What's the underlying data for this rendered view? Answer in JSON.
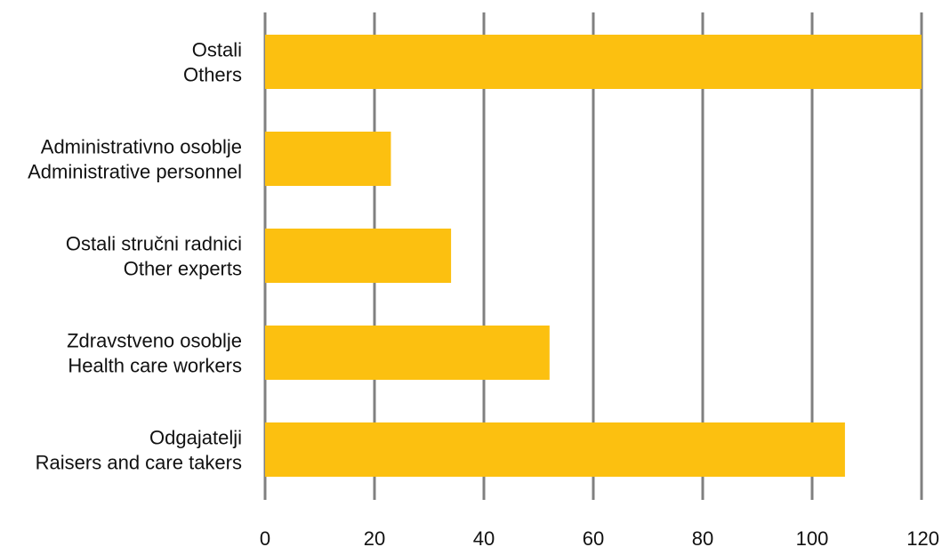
{
  "chart_data": {
    "type": "bar",
    "orientation": "horizontal",
    "categories": [
      [
        "Ostali",
        "Others"
      ],
      [
        "Administrativno osoblje",
        "Administrative personnel"
      ],
      [
        "Ostali stručni radnici",
        "Other experts"
      ],
      [
        "Zdravstveno osoblje",
        "Health care workers"
      ],
      [
        "Odgajatelji",
        "Raisers and care takers"
      ]
    ],
    "values": [
      120,
      23,
      34,
      52,
      106
    ],
    "xlim": [
      0,
      120
    ],
    "xticks": [
      0,
      20,
      40,
      60,
      80,
      100,
      120
    ],
    "grid": true,
    "legend": "none",
    "title": "",
    "xlabel": "",
    "ylabel": ""
  },
  "colors": {
    "bar": "#FCC010",
    "grid": "#808080",
    "text": "#111111",
    "background": "#ffffff"
  }
}
